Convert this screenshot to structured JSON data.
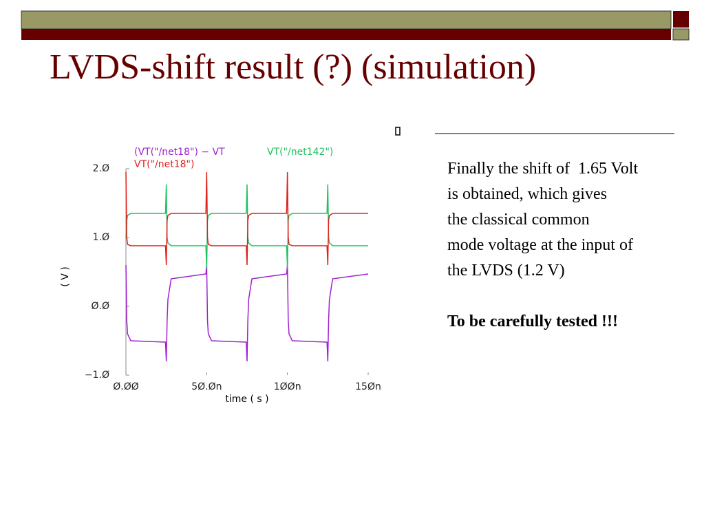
{
  "slide": {
    "title": "LVDS-shift result  (?) (simulation)",
    "lines": [
      "Finally the shift of  1.65 Volt",
      "is obtained, which gives",
      "the classical common",
      "mode voltage at the input of",
      "the LVDS (1.2 V)"
    ],
    "note": "To be carefully tested !!!"
  },
  "chart_data": {
    "type": "line",
    "x_label": "time ( s )",
    "y_label": "( V )",
    "x": [
      0,
      5e-10,
      1e-09,
      3e-09,
      2.45e-08,
      2.5e-08,
      2.55e-08,
      2.6e-08,
      2.8e-08,
      4.95e-08,
      5e-08,
      5.05e-08,
      5.1e-08,
      5.3e-08,
      7.45e-08,
      7.5e-08,
      7.55e-08,
      7.6e-08,
      7.8e-08,
      9.95e-08,
      1e-07,
      1.005e-07,
      1.01e-07,
      1.03e-07,
      1.245e-07,
      1.25e-07,
      1.255e-07,
      1.26e-07,
      1.28e-07,
      1.5e-07
    ],
    "series": [
      {
        "name": "(VT(\"/net18\") − VT",
        "color": "#a020d0",
        "values": [
          0.6,
          -0.2,
          -0.4,
          -0.5,
          -0.52,
          -0.8,
          -0.2,
          0.1,
          0.4,
          0.47,
          0.6,
          -0.2,
          -0.4,
          -0.5,
          -0.52,
          -0.8,
          -0.2,
          0.1,
          0.4,
          0.47,
          0.6,
          -0.2,
          -0.4,
          -0.5,
          -0.52,
          -0.8,
          -0.2,
          0.1,
          0.4,
          0.47
        ]
      },
      {
        "name": "VT(\"/net142\")",
        "color": "#20c060",
        "values": [
          1.0,
          1.25,
          1.32,
          1.35,
          1.35,
          1.77,
          1.0,
          0.92,
          0.88,
          0.88,
          0.55,
          1.25,
          1.32,
          1.35,
          1.35,
          1.77,
          1.0,
          0.92,
          0.88,
          0.88,
          0.55,
          1.25,
          1.32,
          1.35,
          1.35,
          1.77,
          1.0,
          0.92,
          0.88,
          0.88
        ]
      },
      {
        "name": "VT(\"/net18\")",
        "color": "#e0201a",
        "values": [
          1.95,
          1.0,
          0.9,
          0.88,
          0.88,
          0.6,
          1.25,
          1.32,
          1.35,
          1.35,
          1.95,
          1.0,
          0.9,
          0.88,
          0.88,
          0.6,
          1.25,
          1.32,
          1.35,
          1.35,
          1.95,
          1.0,
          0.9,
          0.88,
          0.88,
          0.6,
          1.25,
          1.32,
          1.35,
          1.35
        ]
      }
    ],
    "xlim": [
      0,
      1.5e-07
    ],
    "xticks": [
      {
        "value": 0,
        "label": "Ø.ØØ"
      },
      {
        "value": 5e-08,
        "label": "5Ø.Øn"
      },
      {
        "value": 1e-07,
        "label": "1ØØn"
      },
      {
        "value": 1.5e-07,
        "label": "15Øn"
      }
    ],
    "ylim": [
      -1,
      2
    ],
    "yticks": [
      {
        "value": -1,
        "label": "−1.Ø"
      },
      {
        "value": 0,
        "label": "Ø.Ø"
      },
      {
        "value": 1,
        "label": "1.Ø"
      },
      {
        "value": 2,
        "label": "2.Ø"
      }
    ],
    "grid": false
  }
}
